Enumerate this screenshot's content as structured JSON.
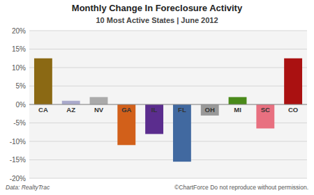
{
  "chart_data": {
    "type": "bar",
    "title": "Monthly Change In Foreclosure Activity",
    "subtitle": "10 Most Active States | June 2012",
    "categories": [
      "CA",
      "AZ",
      "NV",
      "GA",
      "IL",
      "FL",
      "OH",
      "MI",
      "SC",
      "CO"
    ],
    "values": [
      12.5,
      1.0,
      2.0,
      -11.0,
      -8.0,
      -15.5,
      -3.0,
      2.0,
      -6.5,
      12.5
    ],
    "colors": [
      "#8B6914",
      "#AAAACC",
      "#AAAAAA",
      "#D2601A",
      "#5B2D8E",
      "#4169A0",
      "#999999",
      "#4A8A1A",
      "#E87080",
      "#AA1111"
    ],
    "ylim": [
      -20,
      20
    ],
    "yticks": [
      {
        "value": -20,
        "label": "-20%"
      },
      {
        "value": -15,
        "label": "-15%"
      },
      {
        "value": -10,
        "label": "-10%"
      },
      {
        "value": -5,
        "label": "-5%"
      },
      {
        "value": 0,
        "label": "0%"
      },
      {
        "value": 5,
        "label": "5%"
      },
      {
        "value": 10,
        "label": "10%"
      },
      {
        "value": 15,
        "label": "15%"
      },
      {
        "value": 20,
        "label": "20%"
      }
    ],
    "grid": true,
    "annotations": [
      "Data: RealtyTrac",
      "©ChartForce  Do not reproduce without permission."
    ]
  }
}
